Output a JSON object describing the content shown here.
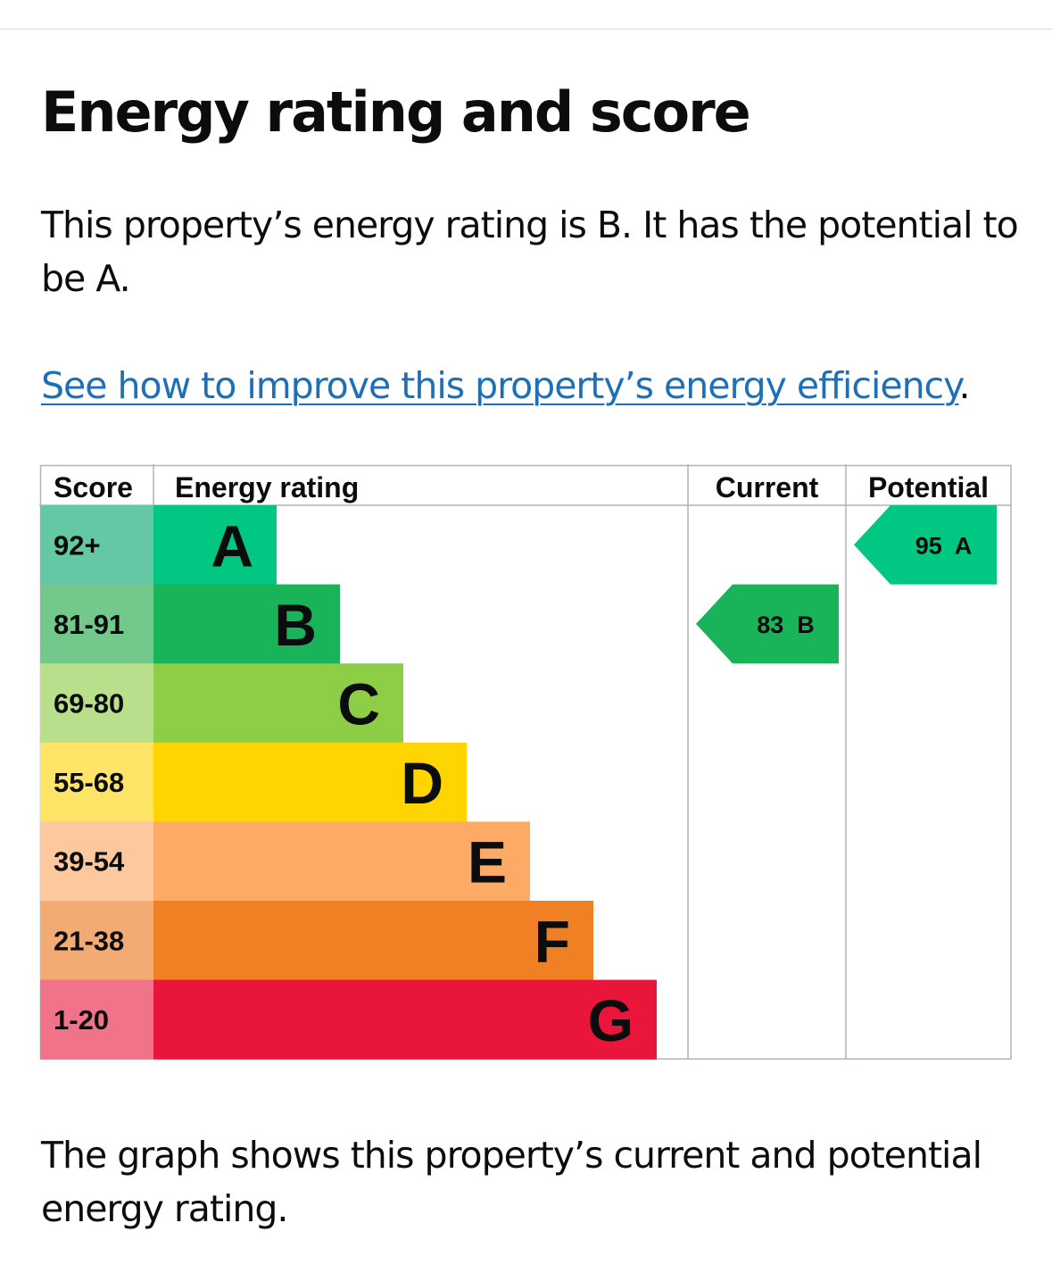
{
  "page": {
    "title": "Energy rating and score",
    "intro": "This property’s energy rating is B. It has the potential to be A.",
    "link_text": "See how to improve this property’s energy efficiency",
    "link_suffix": ".",
    "footer": "The graph shows this property’s current and potential energy rating."
  },
  "chart_data": {
    "type": "bar",
    "title": "Energy rating and score",
    "columns": {
      "score": "Score",
      "rating": "Energy rating",
      "current": "Current",
      "potential": "Potential"
    },
    "bands": [
      {
        "band": "A",
        "range": "92+",
        "color": "#00c781",
        "score_color": "#63c8a3"
      },
      {
        "band": "B",
        "range": "81-91",
        "color": "#19b459",
        "score_color": "#72c98b"
      },
      {
        "band": "C",
        "range": "69-80",
        "color": "#8dce46",
        "score_color": "#b9df8c"
      },
      {
        "band": "D",
        "range": "55-68",
        "color": "#ffd500",
        "score_color": "#ffe467"
      },
      {
        "band": "E",
        "range": "39-54",
        "color": "#fcaa65",
        "score_color": "#fdc89e"
      },
      {
        "band": "F",
        "range": "21-38",
        "color": "#ef8023",
        "score_color": "#f3ab74"
      },
      {
        "band": "G",
        "range": "1-20",
        "color": "#e9153b",
        "score_color": "#f17389"
      }
    ],
    "current": {
      "score": 83,
      "band": "B",
      "label": "83  B"
    },
    "potential": {
      "score": 95,
      "band": "A",
      "label": "95  A"
    }
  }
}
